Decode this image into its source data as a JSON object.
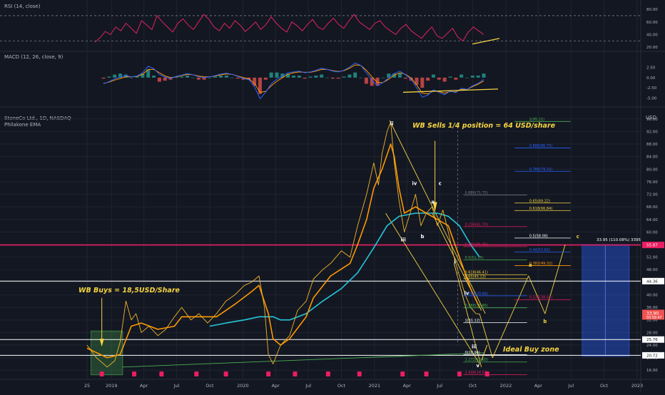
{
  "chart_data": {
    "type": "line",
    "colors": {
      "background": "#131722",
      "grid": "#1f2430",
      "price": "#f0b429",
      "ema_fast": "#ff9800",
      "ema_slow": "#26c6da",
      "rsi": "#e0245e",
      "macd": "#2962ff",
      "signal": "#ff9800",
      "annotation_yellow": "#f5d442",
      "red_line": "#e91e63",
      "blue_fib": "#2962ff",
      "green_fib": "#4caf50"
    },
    "rsi_panel": {
      "title": "RSI (14, close)",
      "ticks": [
        "80.00",
        "60.00",
        "40.00",
        "20.00"
      ],
      "ylim": [
        18,
        88
      ],
      "levels": [
        70,
        30
      ],
      "values": [
        28,
        35,
        45,
        40,
        52,
        46,
        58,
        50,
        42,
        62,
        55,
        48,
        70,
        60,
        52,
        44,
        58,
        65,
        55,
        48,
        60,
        72,
        64,
        52,
        46,
        58,
        50,
        62,
        55,
        45,
        52,
        60,
        48,
        56,
        68,
        58,
        50,
        44,
        60,
        54,
        46,
        56,
        64,
        52,
        48,
        58,
        66,
        56,
        50,
        62,
        72,
        60,
        54,
        48,
        58,
        62,
        52,
        46,
        40,
        50,
        56,
        46,
        40,
        34,
        44,
        52,
        38,
        34,
        42,
        50,
        36,
        30,
        44,
        52,
        46,
        40
      ]
    },
    "macd_panel": {
      "title": "MACD (12, 26, close, 9)",
      "ticks": [
        "2.50",
        "0.00",
        "-2.50",
        "-5.00"
      ],
      "ylim": [
        -6.5,
        4
      ],
      "macd": [
        -1.5,
        -1,
        -0.3,
        0.2,
        0.5,
        0.2,
        0.4,
        1.2,
        2.8,
        2.2,
        0.8,
        0.1,
        -0.2,
        0.3,
        0.6,
        1,
        0.7,
        0.2,
        0,
        0.2,
        0.5,
        0.9,
        1.1,
        0.8,
        0.3,
        -0.2,
        -0.5,
        -2.2,
        -5.2,
        -3.6,
        -1.5,
        -0.4,
        0.4,
        1.2,
        1.4,
        1.6,
        1.2,
        1.4,
        1.8,
        2.3,
        2,
        1.6,
        1.4,
        1.8,
        2.6,
        3.6,
        3,
        1.2,
        -0.6,
        -2,
        -1.2,
        0,
        1,
        1.6,
        0.7,
        -0.4,
        -2.5,
        -4.8,
        -4.3,
        -3,
        -3.6,
        -4.2,
        -3.3,
        -3.7,
        -2.6,
        -2.9,
        -2,
        -1.4,
        -0.4
      ],
      "signal": [
        -1.4,
        -1.1,
        -0.6,
        -0.2,
        0.2,
        0.2,
        0.3,
        0.8,
        2,
        2,
        1.2,
        0.4,
        0,
        0.2,
        0.5,
        0.8,
        0.7,
        0.4,
        0.2,
        0.2,
        0.4,
        0.7,
        0.9,
        0.8,
        0.4,
        0,
        -0.3,
        -1.4,
        -3.6,
        -3.4,
        -2,
        -0.9,
        0,
        0.8,
        1.2,
        1.4,
        1.3,
        1.3,
        1.6,
        2,
        2,
        1.7,
        1.5,
        1.7,
        2.3,
        3.1,
        3,
        1.8,
        0.2,
        -1.2,
        -1.2,
        -0.4,
        0.6,
        1.2,
        0.8,
        -0.1,
        -1.8,
        -3.8,
        -4,
        -3.3,
        -3.4,
        -3.8,
        -3.4,
        -3.5,
        -2.9,
        -2.9,
        -2.2,
        -1.6,
        -0.8
      ]
    },
    "price_panel": {
      "title": "StoneCo Ltd., 1D, NASDAQ",
      "subtitle": "Philakone EMA",
      "currency": "USD",
      "ylim": [
        14,
        98
      ],
      "ticks": [
        "96.00",
        "92.00",
        "88.00",
        "84.00",
        "80.00",
        "76.00",
        "72.00",
        "68.00",
        "64.00",
        "60.00",
        "56.00",
        "52.00",
        "48.00",
        "44.00",
        "40.00",
        "36.00",
        "32.00",
        "28.00",
        "24.00",
        "20.00",
        "16.00"
      ],
      "x_labels": [
        "25",
        "2019",
        "Apr",
        "Jul",
        "Oct",
        "2020",
        "Apr",
        "Jul",
        "Oct",
        "2021",
        "Apr",
        "Jul",
        "Oct",
        "2022",
        "Apr",
        "Jul",
        "Oct",
        "2023"
      ],
      "price": [
        [
          "2018-10-25",
          24
        ],
        [
          "2018-11-20",
          20
        ],
        [
          "2018-12-20",
          17
        ],
        [
          "2019-01-10",
          19
        ],
        [
          "2019-01-25",
          25
        ],
        [
          "2019-02-10",
          38
        ],
        [
          "2019-02-25",
          32
        ],
        [
          "2019-03-10",
          34
        ],
        [
          "2019-03-25",
          28
        ],
        [
          "2019-04-15",
          30
        ],
        [
          "2019-05-10",
          27
        ],
        [
          "2019-06-01",
          29
        ],
        [
          "2019-06-25",
          33
        ],
        [
          "2019-07-15",
          36
        ],
        [
          "2019-08-10",
          32
        ],
        [
          "2019-09-01",
          34
        ],
        [
          "2019-09-25",
          31
        ],
        [
          "2019-10-20",
          34
        ],
        [
          "2019-11-15",
          38
        ],
        [
          "2019-12-10",
          40
        ],
        [
          "2020-01-05",
          43
        ],
        [
          "2020-01-25",
          44
        ],
        [
          "2020-02-15",
          46
        ],
        [
          "2020-03-01",
          36
        ],
        [
          "2020-03-12",
          21
        ],
        [
          "2020-03-25",
          18
        ],
        [
          "2020-04-15",
          24
        ],
        [
          "2020-05-10",
          27
        ],
        [
          "2020-06-01",
          35
        ],
        [
          "2020-06-25",
          38
        ],
        [
          "2020-07-15",
          45
        ],
        [
          "2020-08-10",
          48
        ],
        [
          "2020-09-01",
          50
        ],
        [
          "2020-10-01",
          54
        ],
        [
          "2020-10-25",
          52
        ],
        [
          "2020-11-15",
          62
        ],
        [
          "2020-12-10",
          72
        ],
        [
          "2020-12-30",
          82
        ],
        [
          "2021-01-12",
          75
        ],
        [
          "2021-01-22",
          85
        ],
        [
          "2021-02-05",
          92
        ],
        [
          "2021-02-15",
          95
        ],
        [
          "2021-02-25",
          82
        ],
        [
          "2021-03-10",
          70
        ],
        [
          "2021-03-25",
          60
        ],
        [
          "2021-04-10",
          66
        ],
        [
          "2021-04-25",
          72
        ],
        [
          "2021-05-10",
          62
        ],
        [
          "2021-05-25",
          66
        ],
        [
          "2021-06-10",
          68
        ],
        [
          "2021-06-25",
          62
        ],
        [
          "2021-07-10",
          67
        ],
        [
          "2021-07-25",
          60
        ],
        [
          "2021-08-10",
          52
        ],
        [
          "2021-08-25",
          46
        ],
        [
          "2021-09-10",
          40
        ],
        [
          "2021-09-25",
          36
        ],
        [
          "2021-10-10",
          34
        ],
        [
          "2021-10-20",
          33.9
        ]
      ],
      "ema_fast": [
        [
          "2018-10-25",
          23
        ],
        [
          "2018-12-20",
          20
        ],
        [
          "2019-01-25",
          21
        ],
        [
          "2019-02-25",
          30
        ],
        [
          "2019-03-25",
          31
        ],
        [
          "2019-05-10",
          29
        ],
        [
          "2019-06-25",
          30
        ],
        [
          "2019-07-15",
          33
        ],
        [
          "2019-09-01",
          33
        ],
        [
          "2019-10-20",
          33
        ],
        [
          "2019-12-10",
          37
        ],
        [
          "2020-01-25",
          41
        ],
        [
          "2020-02-15",
          43
        ],
        [
          "2020-03-12",
          34
        ],
        [
          "2020-03-25",
          26
        ],
        [
          "2020-04-15",
          24
        ],
        [
          "2020-05-10",
          26
        ],
        [
          "2020-06-25",
          33
        ],
        [
          "2020-07-15",
          39
        ],
        [
          "2020-09-01",
          46
        ],
        [
          "2020-10-25",
          50
        ],
        [
          "2020-11-15",
          56
        ],
        [
          "2020-12-10",
          64
        ],
        [
          "2020-12-30",
          74
        ],
        [
          "2021-01-22",
          80
        ],
        [
          "2021-02-15",
          88
        ],
        [
          "2021-02-25",
          84
        ],
        [
          "2021-03-10",
          74
        ],
        [
          "2021-03-25",
          66
        ],
        [
          "2021-04-25",
          68
        ],
        [
          "2021-05-25",
          66
        ],
        [
          "2021-06-25",
          64
        ],
        [
          "2021-07-25",
          62
        ],
        [
          "2021-08-25",
          52
        ],
        [
          "2021-09-25",
          42
        ],
        [
          "2021-10-20",
          36
        ]
      ],
      "ema_slow": [
        [
          "2019-10-01",
          30
        ],
        [
          "2019-11-15",
          31
        ],
        [
          "2020-01-05",
          32
        ],
        [
          "2020-02-15",
          33
        ],
        [
          "2020-03-25",
          33
        ],
        [
          "2020-04-15",
          32
        ],
        [
          "2020-05-10",
          32
        ],
        [
          "2020-06-25",
          34
        ],
        [
          "2020-08-10",
          38
        ],
        [
          "2020-10-01",
          42
        ],
        [
          "2020-11-15",
          47
        ],
        [
          "2020-12-30",
          55
        ],
        [
          "2021-02-05",
          62
        ],
        [
          "2021-03-10",
          65
        ],
        [
          "2021-04-25",
          66
        ],
        [
          "2021-05-25",
          66
        ],
        [
          "2021-06-25",
          66
        ],
        [
          "2021-07-25",
          65
        ],
        [
          "2021-08-25",
          62
        ],
        [
          "2021-09-25",
          56
        ],
        [
          "2021-10-20",
          52
        ]
      ],
      "forecast": [
        [
          "2021-10-20",
          33.9
        ],
        [
          "2021-11-25",
          20
        ],
        [
          "2022-03-05",
          46
        ],
        [
          "2022-04-20",
          34
        ],
        [
          "2022-06-15",
          56
        ]
      ],
      "support_levels": [
        44.36,
        25.76,
        20.72
      ],
      "resistance_red": 55.87,
      "last_price": "33.90",
      "last_price_sub": "03:59:47",
      "price_labels": [
        "55.87",
        "44.36",
        "25.76",
        "20.72"
      ],
      "fibonacci": [
        {
          "label": "1(95.21)",
          "value": 95.21,
          "color": "#4caf50"
        },
        {
          "label": "0.886(86.75)",
          "value": 86.75,
          "color": "#2962ff"
        },
        {
          "label": "0.786(79.32)",
          "value": 79.32,
          "color": "#2962ff"
        },
        {
          "label": "0.65(69.22)",
          "value": 69.22,
          "color": "#f5d442"
        },
        {
          "label": "0.618(66.84)",
          "value": 66.84,
          "color": "#f5d442"
        },
        {
          "label": "0.5(58.08)",
          "value": 58.08,
          "color": "#ffffff"
        },
        {
          "label": "0.44(53.62)",
          "value": 53.62,
          "color": "#2962ff"
        },
        {
          "label": "0.382(49.32)",
          "value": 49.32,
          "color": "#ff9800"
        },
        {
          "label": "0.236(38.47)",
          "value": 38.47,
          "color": "#e91e63"
        },
        {
          "label": "0.886(71.75)",
          "value": 71.75,
          "color": "#787b86"
        },
        {
          "label": "0.236(61.70)",
          "value": 61.7,
          "color": "#e91e63"
        },
        {
          "label": "0.382(55.35)",
          "value": 55.35,
          "color": "#e91e63"
        },
        {
          "label": "0.5(51.15)",
          "value": 51.15,
          "color": "#4caf50"
        },
        {
          "label": "0.618(46.41)",
          "value": 46.41,
          "color": "#f5d442"
        },
        {
          "label": "0.65(45.13)",
          "value": 45.13,
          "color": "#f5d442"
        },
        {
          "label": "0.786(39.68)",
          "value": 39.68,
          "color": "#2962ff"
        },
        {
          "label": "0.886(35.86)",
          "value": 35.86,
          "color": "#4caf50"
        },
        {
          "label": "1(31.12)",
          "value": 31.12,
          "color": "#ffffff"
        },
        {
          "label": "0(20.96)",
          "value": 20.96,
          "color": "#ffffff"
        },
        {
          "label": "1.272(18.60)",
          "value": 18.6,
          "color": "#4caf50"
        },
        {
          "label": "1.414(14.54)",
          "value": 14.54,
          "color": "#e91e63"
        }
      ],
      "target_box_label": "33.95 (110.08%) 3395",
      "annotations": {
        "buy": "WB Buys = 18,5USD/Share",
        "sell": "WB Sells 1/4 position = 64 USD/share",
        "buy_zone": "Ideal Buy zone"
      },
      "wave_labels": [
        {
          "text": "ii",
          "date": "2021-02-18",
          "value": 94
        },
        {
          "text": "iii",
          "date": "2021-03-22",
          "value": 57
        },
        {
          "text": "iv",
          "date": "2021-04-22",
          "value": 75
        },
        {
          "text": "b",
          "date": "2021-05-14",
          "value": 58
        },
        {
          "text": "a",
          "date": "2021-06-12",
          "value": 69
        },
        {
          "text": "c",
          "date": "2021-07-02",
          "value": 75
        },
        {
          "text": "i",
          "date": "2021-08-12",
          "value": 50
        },
        {
          "text": "iv",
          "date": "2021-09-14",
          "value": 40
        },
        {
          "text": "iii",
          "date": "2021-10-05",
          "value": 23
        },
        {
          "text": "v",
          "date": "2021-10-15",
          "value": 17
        },
        {
          "text": "a",
          "date": "2022-03-10",
          "value": 49
        },
        {
          "text": "b",
          "date": "2022-04-20",
          "value": 31
        },
        {
          "text": "c",
          "date": "2022-07-20",
          "value": 58
        }
      ]
    }
  }
}
